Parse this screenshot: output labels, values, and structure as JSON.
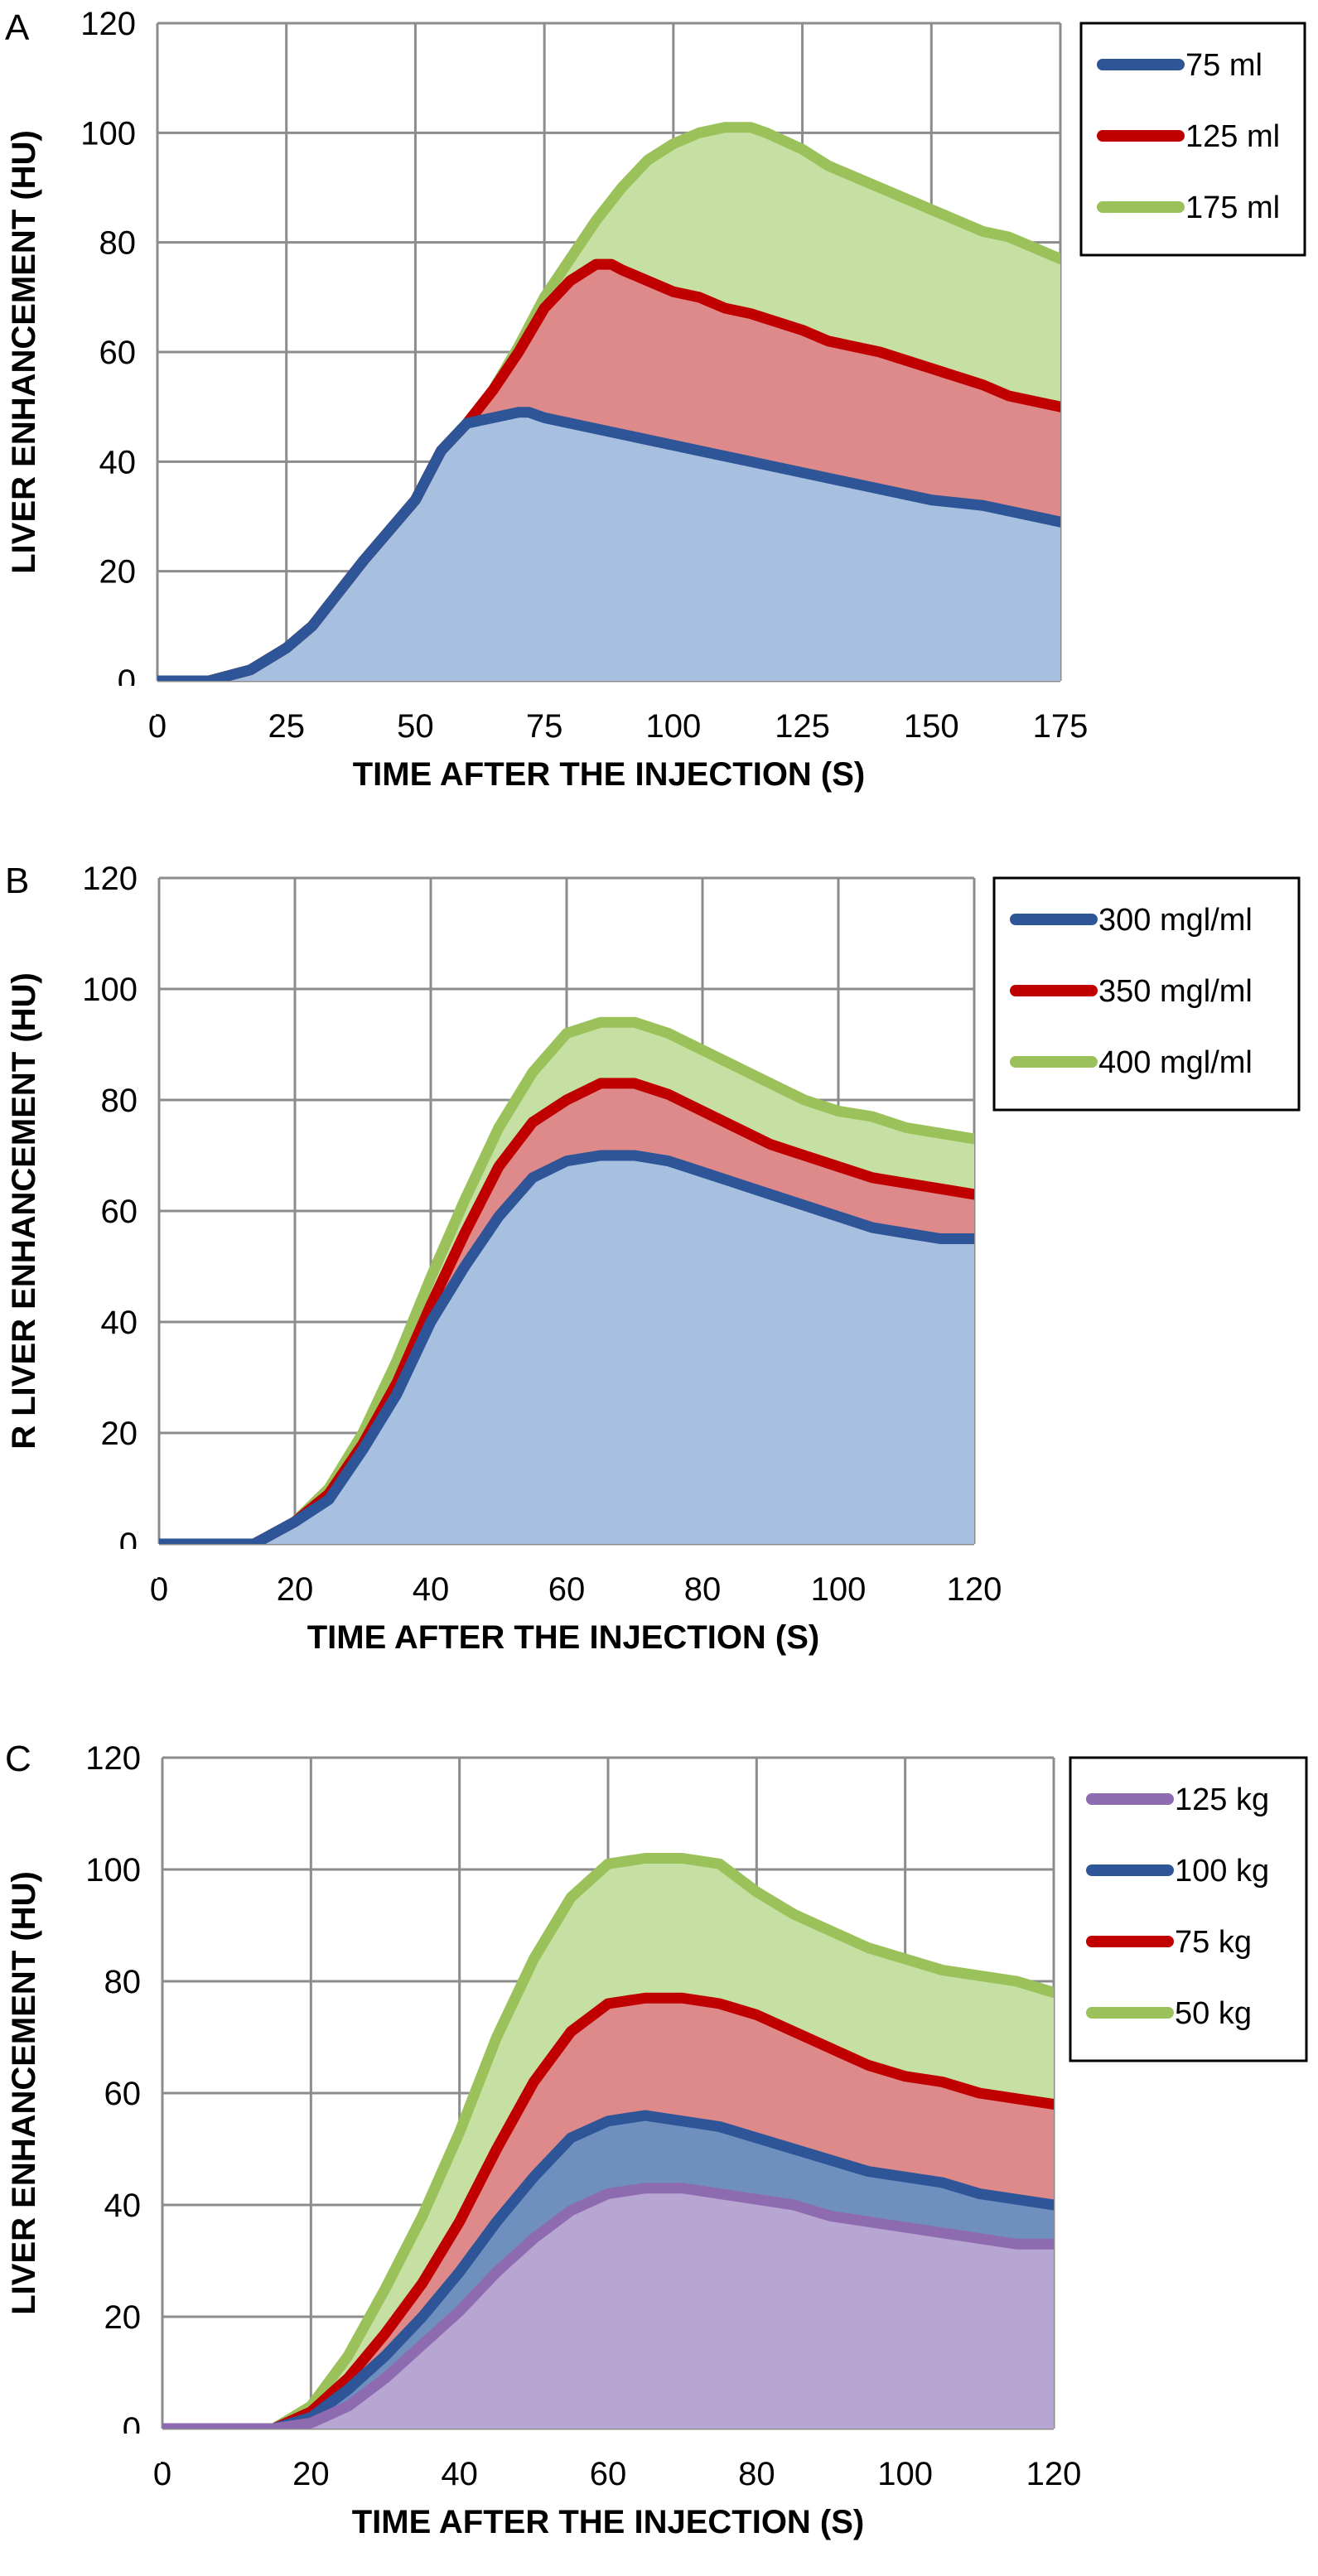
{
  "chart_data": [
    {
      "type": "area",
      "panel_label": "A",
      "xlabel": "TIME AFTER THE INJECTION (S)",
      "ylabel": "LIVER ENHANCEMENT (HU)",
      "xlim": [
        0,
        175
      ],
      "ylim": [
        0,
        120
      ],
      "xticks": [
        0,
        25,
        50,
        75,
        100,
        125,
        150,
        175
      ],
      "yticks": [
        0,
        20,
        40,
        60,
        80,
        100,
        120
      ],
      "grid": true,
      "legend_position": "top-right",
      "series": [
        {
          "name": "175 ml",
          "color": "#9bc25a",
          "fill": "#c6e0a4",
          "x": [
            0,
            10,
            18,
            25,
            30,
            40,
            50,
            55,
            60,
            65,
            70,
            75,
            80,
            85,
            90,
            95,
            100,
            105,
            110,
            115,
            118,
            125,
            130,
            140,
            150,
            160,
            165,
            175
          ],
          "y": [
            0,
            0,
            2,
            6,
            10,
            22,
            33,
            42,
            47,
            53,
            61,
            70,
            77,
            84,
            90,
            95,
            98,
            100,
            101,
            101,
            100,
            97,
            94,
            90,
            86,
            82,
            81,
            77
          ]
        },
        {
          "name": "125 ml",
          "color": "#c00000",
          "fill": "#de8a8a",
          "x": [
            0,
            10,
            18,
            25,
            30,
            40,
            50,
            55,
            60,
            65,
            70,
            75,
            80,
            85,
            88,
            90,
            95,
            100,
            105,
            110,
            115,
            125,
            130,
            140,
            150,
            160,
            165,
            175
          ],
          "y": [
            0,
            0,
            2,
            6,
            10,
            22,
            33,
            42,
            47,
            53,
            60,
            68,
            73,
            76,
            76,
            75,
            73,
            71,
            70,
            68,
            67,
            64,
            62,
            60,
            57,
            54,
            52,
            50
          ]
        },
        {
          "name": "75 ml",
          "color": "#2e5597",
          "fill": "#a8c0e0",
          "x": [
            0,
            10,
            18,
            25,
            30,
            40,
            50,
            55,
            60,
            65,
            70,
            72,
            75,
            80,
            90,
            100,
            110,
            120,
            130,
            140,
            150,
            160,
            165,
            175
          ],
          "y": [
            0,
            0,
            2,
            6,
            10,
            22,
            33,
            42,
            47,
            48,
            49,
            49,
            48,
            47,
            45,
            43,
            41,
            39,
            37,
            35,
            33,
            32,
            31,
            29
          ]
        }
      ]
    },
    {
      "type": "area",
      "panel_label": "B",
      "xlabel": "TIME AFTER THE INJECTION (S)",
      "ylabel": "R LIVER ENHANCEMENT (HU)",
      "xlim": [
        0,
        120
      ],
      "ylim": [
        0,
        120
      ],
      "xticks": [
        0,
        20,
        40,
        60,
        80,
        100,
        120
      ],
      "yticks": [
        0,
        20,
        40,
        60,
        80,
        100,
        120
      ],
      "grid": true,
      "legend_position": "top-right",
      "series": [
        {
          "name": "400 mgl/ml",
          "color": "#9bc25a",
          "fill": "#c6e0a4",
          "x": [
            0,
            10,
            14,
            20,
            25,
            30,
            35,
            40,
            45,
            50,
            55,
            60,
            65,
            70,
            75,
            80,
            85,
            90,
            95,
            100,
            105,
            110,
            115,
            120
          ],
          "y": [
            0,
            0,
            0,
            4,
            10,
            20,
            33,
            48,
            62,
            75,
            85,
            92,
            94,
            94,
            92,
            89,
            86,
            83,
            80,
            78,
            77,
            75,
            74,
            73
          ]
        },
        {
          "name": "350 mgl/ml",
          "color": "#c00000",
          "fill": "#de8a8a",
          "x": [
            0,
            10,
            14,
            20,
            25,
            30,
            35,
            40,
            45,
            50,
            55,
            60,
            65,
            70,
            75,
            80,
            85,
            90,
            95,
            100,
            105,
            110,
            115,
            120
          ],
          "y": [
            0,
            0,
            0,
            4,
            9,
            18,
            29,
            43,
            56,
            68,
            76,
            80,
            83,
            83,
            81,
            78,
            75,
            72,
            70,
            68,
            66,
            65,
            64,
            63
          ]
        },
        {
          "name": "300 mgl/ml",
          "color": "#2e5597",
          "fill": "#a8c0e0",
          "x": [
            0,
            10,
            14,
            20,
            25,
            30,
            35,
            40,
            45,
            50,
            55,
            60,
            65,
            70,
            75,
            80,
            85,
            90,
            95,
            100,
            105,
            110,
            115,
            120
          ],
          "y": [
            0,
            0,
            0,
            4,
            8,
            17,
            27,
            40,
            50,
            59,
            66,
            69,
            70,
            70,
            69,
            67,
            65,
            63,
            61,
            59,
            57,
            56,
            55,
            55
          ]
        }
      ]
    },
    {
      "type": "area",
      "panel_label": "C",
      "xlabel": "TIME AFTER THE INJECTION (S)",
      "ylabel": "LIVER ENHANCEMENT (HU)",
      "xlim": [
        0,
        120
      ],
      "ylim": [
        0,
        120
      ],
      "xticks": [
        0,
        20,
        40,
        60,
        80,
        100,
        120
      ],
      "yticks": [
        0,
        20,
        40,
        60,
        80,
        100,
        120
      ],
      "grid": true,
      "legend_position": "top-right",
      "series": [
        {
          "name": "50 kg",
          "color": "#9bc25a",
          "fill": "#c6e0a4",
          "x": [
            0,
            10,
            15,
            20,
            25,
            30,
            35,
            40,
            45,
            50,
            55,
            60,
            65,
            70,
            75,
            80,
            85,
            90,
            95,
            100,
            105,
            110,
            115,
            120
          ],
          "y": [
            0,
            0,
            0,
            4,
            13,
            25,
            38,
            53,
            70,
            84,
            95,
            101,
            102,
            102,
            101,
            96,
            92,
            89,
            86,
            84,
            82,
            81,
            80,
            78
          ]
        },
        {
          "name": "75 kg",
          "color": "#c00000",
          "fill": "#de8a8a",
          "x": [
            0,
            10,
            15,
            20,
            25,
            30,
            35,
            40,
            45,
            50,
            55,
            60,
            65,
            70,
            75,
            80,
            85,
            90,
            95,
            100,
            105,
            110,
            115,
            120
          ],
          "y": [
            0,
            0,
            0,
            3,
            9,
            17,
            26,
            37,
            50,
            62,
            71,
            76,
            77,
            77,
            76,
            74,
            71,
            68,
            65,
            63,
            62,
            60,
            59,
            58
          ]
        },
        {
          "name": "100 kg",
          "color": "#2e5597",
          "fill": "#6f8fbf",
          "x": [
            0,
            10,
            15,
            20,
            25,
            30,
            35,
            40,
            45,
            50,
            55,
            60,
            65,
            70,
            75,
            80,
            85,
            90,
            95,
            100,
            105,
            110,
            115,
            120
          ],
          "y": [
            0,
            0,
            0,
            2,
            7,
            13,
            20,
            28,
            37,
            45,
            52,
            55,
            56,
            55,
            54,
            52,
            50,
            48,
            46,
            45,
            44,
            42,
            41,
            40
          ]
        },
        {
          "name": "125 kg",
          "color": "#8e6bb0",
          "fill": "#b8a6d2",
          "x": [
            0,
            10,
            15,
            20,
            25,
            30,
            35,
            40,
            45,
            50,
            55,
            60,
            65,
            70,
            75,
            80,
            85,
            90,
            95,
            100,
            105,
            110,
            115,
            120
          ],
          "y": [
            0,
            0,
            0,
            1,
            4,
            9,
            15,
            21,
            28,
            34,
            39,
            42,
            43,
            43,
            42,
            41,
            40,
            38,
            37,
            36,
            35,
            34,
            33,
            33
          ]
        }
      ]
    }
  ]
}
